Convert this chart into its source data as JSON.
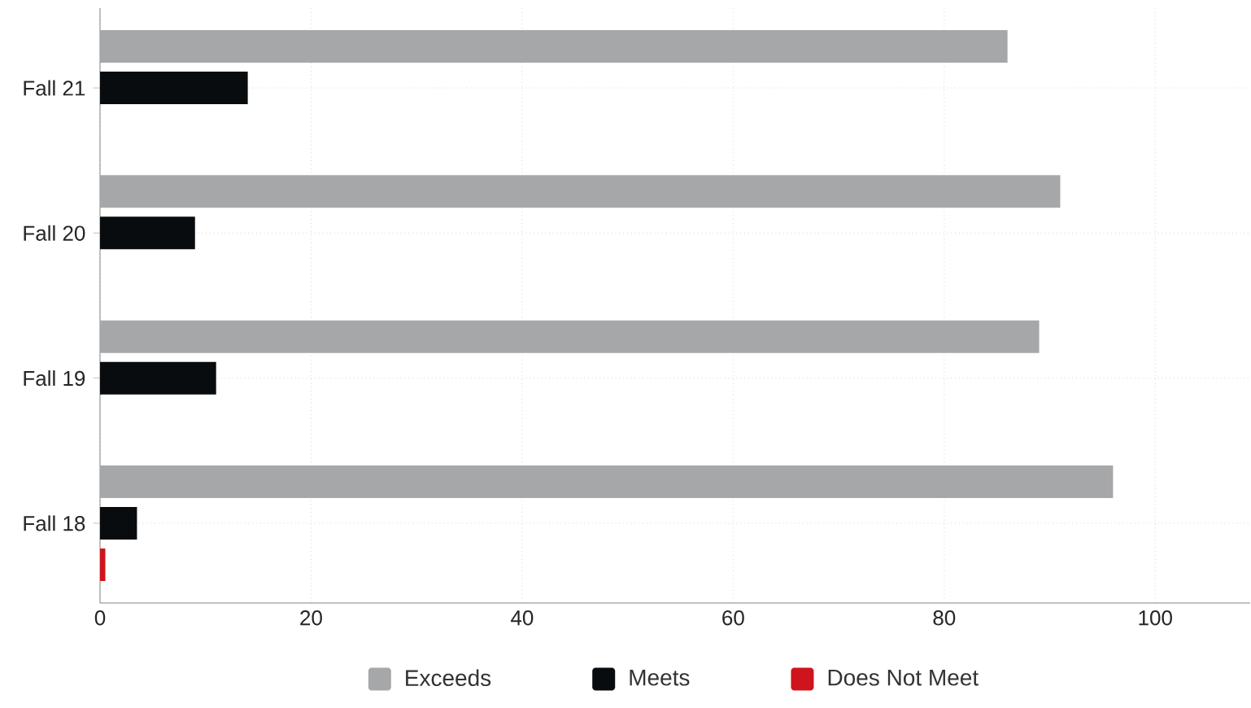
{
  "chart_data": {
    "type": "bar",
    "orientation": "horizontal",
    "categories": [
      "Fall 21",
      "Fall 20",
      "Fall 19",
      "Fall 18"
    ],
    "series": [
      {
        "name": "Exceeds",
        "color": "#a6a7a9",
        "values": [
          86,
          91,
          89,
          96
        ]
      },
      {
        "name": "Meets",
        "color": "#080c0e",
        "values": [
          14,
          9,
          11,
          3.5
        ]
      },
      {
        "name": "Does Not Meet",
        "color": "#d0141e",
        "values": [
          0,
          0,
          0,
          0.5
        ]
      }
    ],
    "xlim": [
      0,
      109
    ],
    "xticks": [
      0,
      20,
      40,
      60,
      80,
      100
    ],
    "grid": true,
    "legend": "bottom"
  }
}
